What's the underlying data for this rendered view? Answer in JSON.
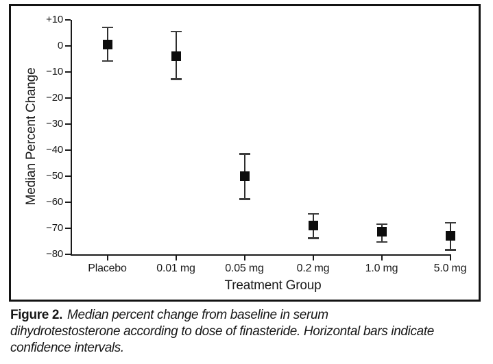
{
  "figure": {
    "caption_label": "Figure 2.",
    "caption_lines": [
      "Median percent change from baseline in serum",
      "dihydrotestosterone according to dose of finasteride. Horizontal bars indicate",
      "confidence intervals."
    ]
  },
  "chart_data": {
    "type": "scatter",
    "title": "",
    "xlabel": "Treatment Group",
    "ylabel": "Median Percent Change",
    "categories": [
      "Placebo",
      "0.01 mg",
      "0.05 mg",
      "0.2 mg",
      "1.0 mg",
      "5.0 mg"
    ],
    "series": [
      {
        "name": "Median percent change from baseline in serum dihydrotestosterone",
        "values": [
          0.5,
          -4,
          -50,
          -69,
          -71.5,
          -73
        ],
        "ci_high": [
          7,
          5.5,
          -41.5,
          -64.5,
          -68.5,
          -68
        ],
        "ci_low": [
          -6,
          -13,
          -59,
          -74,
          -75.5,
          -78.5
        ]
      }
    ],
    "ylim": [
      -80,
      10
    ],
    "yticks": [
      10,
      0,
      -10,
      -20,
      -30,
      -40,
      -50,
      -60,
      -70,
      -80
    ],
    "ytick_labels": [
      "+10",
      "0",
      "−10",
      "−20",
      "−30",
      "−40",
      "−50",
      "−60",
      "−70",
      "−80"
    ],
    "grid": false,
    "legend": false,
    "marker_style": "filled-square",
    "error_bar_style": "vertical-line-with-caps",
    "colors": {
      "marker": "#0d0d0d",
      "error_bar": "#2e2e2e",
      "axis": "#1a1a1a",
      "frame": "#131313",
      "text": "#1a1a1a",
      "background": "#ffffff"
    }
  }
}
